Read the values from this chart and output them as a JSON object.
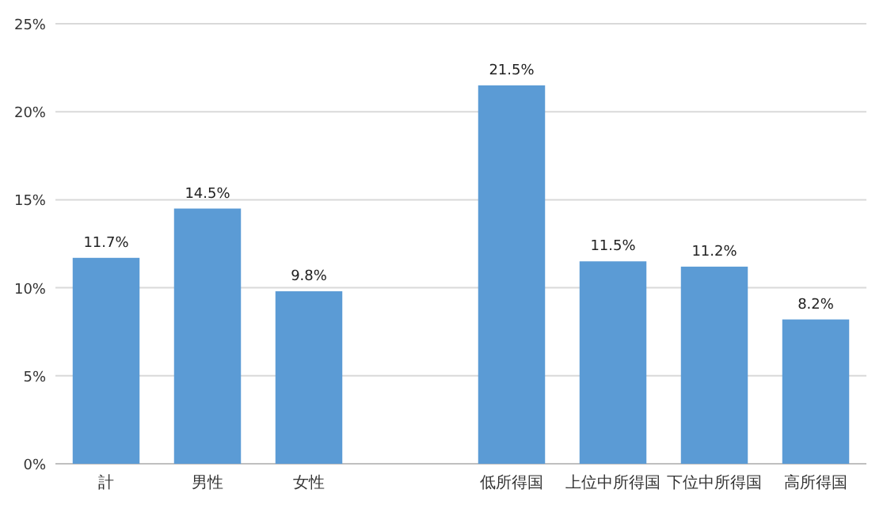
{
  "chart_data": {
    "type": "bar",
    "categories": [
      "計",
      "男性",
      "女性",
      null,
      "低所得国",
      "上位中所得国",
      "下位中所得国",
      "高所得国"
    ],
    "values": [
      11.7,
      14.5,
      9.8,
      null,
      21.5,
      11.5,
      11.2,
      8.2
    ],
    "value_labels": [
      "11.7%",
      "14.5%",
      "9.8%",
      null,
      "21.5%",
      "11.5%",
      "11.2%",
      "8.2%"
    ],
    "color": "#5b9bd5",
    "ylim": [
      0,
      25
    ],
    "yticks": [
      {
        "value": 0,
        "label": "0%"
      },
      {
        "value": 5,
        "label": "5%"
      },
      {
        "value": 10,
        "label": "10%"
      },
      {
        "value": 15,
        "label": "15%"
      },
      {
        "value": 20,
        "label": "20%"
      },
      {
        "value": 25,
        "label": "25%"
      }
    ],
    "grid": "y"
  }
}
